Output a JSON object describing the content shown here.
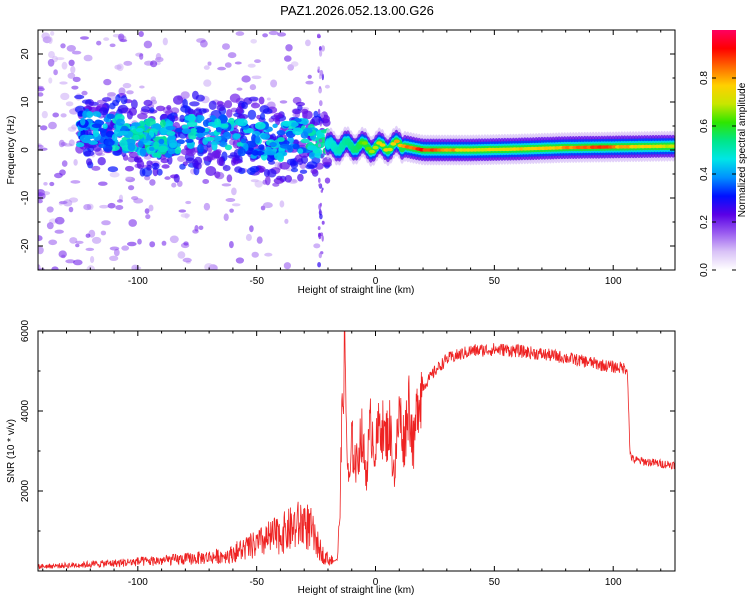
{
  "title": "PAZ1.2026.052.13.00.G26",
  "chart_data": [
    {
      "type": "heatmap",
      "name": "spectrogram",
      "xlabel": "Height of straight line (km)",
      "ylabel": "Frequency (Hz)",
      "xlim": [
        -142,
        126
      ],
      "ylim": [
        -25,
        25
      ],
      "xticks": [
        -100,
        -50,
        0,
        50,
        100
      ],
      "xtick_labels": [
        "-100",
        "-50",
        "0",
        "50",
        "100"
      ],
      "yticks": [
        -20,
        -10,
        0,
        10,
        20
      ],
      "ytick_labels": [
        "-20",
        "-10",
        "0",
        "10",
        "20"
      ],
      "colorbar": {
        "label": "Normalized spectral amplitude",
        "range": [
          0,
          1
        ],
        "ticks": [
          0,
          0.2,
          0.4,
          0.6,
          0.8
        ],
        "tick_labels": [
          "0.0",
          "0.2",
          "0.4",
          "0.6",
          "0.8"
        ],
        "colors": [
          "#ffffff",
          "#d9c2f7",
          "#9a5cf0",
          "#5a00e6",
          "#0010ff",
          "#0090ff",
          "#00e6e6",
          "#00e68a",
          "#2ee600",
          "#c8e600",
          "#ffd000",
          "#ff6a00",
          "#ff0000",
          "#ff0060"
        ]
      },
      "ridge": [
        {
          "x": -120,
          "f": 4.5,
          "a": 0.35
        },
        {
          "x": -110,
          "f": 3.5,
          "a": 0.4
        },
        {
          "x": -100,
          "f": 3.0,
          "a": 0.45
        },
        {
          "x": -90,
          "f": 2.0,
          "a": 0.45
        },
        {
          "x": -80,
          "f": 3.5,
          "a": 0.4
        },
        {
          "x": -70,
          "f": 4.0,
          "a": 0.4
        },
        {
          "x": -60,
          "f": 3.0,
          "a": 0.4
        },
        {
          "x": -50,
          "f": 2.0,
          "a": 0.38
        },
        {
          "x": -40,
          "f": 1.5,
          "a": 0.4
        },
        {
          "x": -30,
          "f": 3.5,
          "a": 0.42
        },
        {
          "x": -22,
          "f": 0.5,
          "a": 0.5
        },
        {
          "x": -10,
          "f": 1.0,
          "a": 0.6
        },
        {
          "x": 0,
          "f": 0.5,
          "a": 0.7
        },
        {
          "x": 10,
          "f": 1.0,
          "a": 0.8
        },
        {
          "x": 20,
          "f": 0.0,
          "a": 0.9
        },
        {
          "x": 40,
          "f": 0.0,
          "a": 0.75
        },
        {
          "x": 60,
          "f": 0.2,
          "a": 0.75
        },
        {
          "x": 80,
          "f": 0.5,
          "a": 0.8
        },
        {
          "x": 95,
          "f": 0.6,
          "a": 0.88
        },
        {
          "x": 110,
          "f": 0.7,
          "a": 0.75
        },
        {
          "x": 126,
          "f": 0.8,
          "a": 0.7
        }
      ]
    },
    {
      "type": "line",
      "name": "snr",
      "xlabel": "Height of straight line (km)",
      "ylabel": "SNR (10 * v/v)",
      "xlim": [
        -142,
        126
      ],
      "ylim": [
        0,
        6000
      ],
      "xticks": [
        -100,
        -50,
        0,
        50,
        100
      ],
      "xtick_labels": [
        "-100",
        "-50",
        "0",
        "50",
        "100"
      ],
      "yticks": [
        2000,
        4000,
        6000
      ],
      "ytick_labels": [
        "2000",
        "4000",
        "6000"
      ],
      "color": "#ee2222",
      "x": [
        -142,
        -130,
        -120,
        -110,
        -100,
        -90,
        -80,
        -70,
        -65,
        -60,
        -55,
        -50,
        -45,
        -40,
        -35,
        -30,
        -27,
        -25,
        -22,
        -20,
        -18,
        -16,
        -15,
        -14,
        -13,
        -12,
        -11,
        -10,
        -8,
        -6,
        -4,
        -2,
        0,
        2,
        4,
        6,
        8,
        10,
        12,
        14,
        16,
        18,
        20,
        25,
        30,
        35,
        40,
        45,
        50,
        55,
        60,
        65,
        70,
        75,
        80,
        85,
        90,
        95,
        100,
        104,
        106,
        107,
        108,
        110,
        115,
        120,
        126
      ],
      "y": [
        120,
        150,
        180,
        210,
        250,
        280,
        320,
        370,
        400,
        450,
        550,
        650,
        800,
        900,
        1050,
        1200,
        1000,
        700,
        400,
        300,
        250,
        300,
        1500,
        4000,
        5800,
        3000,
        2000,
        3200,
        2600,
        3500,
        2400,
        3700,
        3000,
        3800,
        3300,
        3600,
        2400,
        4000,
        3200,
        4300,
        3000,
        4400,
        4600,
        5000,
        5300,
        5400,
        5500,
        5520,
        5540,
        5530,
        5500,
        5460,
        5420,
        5380,
        5330,
        5270,
        5220,
        5150,
        5100,
        5080,
        5050,
        3000,
        2800,
        2760,
        2720,
        2680,
        2650
      ]
    }
  ]
}
